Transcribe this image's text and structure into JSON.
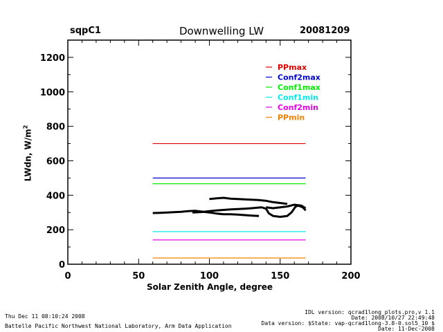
{
  "header": {
    "site": "sqpC1",
    "date": "20081209"
  },
  "footer": {
    "generated": "Thu Dec 11 08:10:24 2008",
    "institution": "Battelle Pacific Northwest National Laboratory, Arm Data Application",
    "idl_version": "IDL version: qcrad1long_plots.pro,v 1.1",
    "idl_date": "Date: 2008/10/27 22:49:48",
    "data_version": "Data version: $State: vap-qcrad1long-3.8-0.sol5_10 $",
    "data_date": "Date: 11-Dec-2008"
  },
  "chart_data": {
    "type": "line",
    "title": "Downwelling LW",
    "xlabel": "Solar Zenith Angle, degree",
    "ylabel": "LWdn, W/m",
    "ylabel_sup": "2",
    "xlim": [
      0,
      200
    ],
    "ylim": [
      0,
      1300
    ],
    "xticks": [
      0,
      50,
      100,
      150,
      200
    ],
    "yticks": [
      0,
      200,
      400,
      600,
      800,
      1000,
      1200
    ],
    "grid": false,
    "legend_position": "top-right",
    "limits": [
      {
        "name": "PPmax",
        "color": "#e00000",
        "y": 700,
        "x": [
          60,
          168
        ]
      },
      {
        "name": "Conf2max",
        "color": "#0000cc",
        "y": 500,
        "x": [
          60,
          168
        ]
      },
      {
        "name": "Conf1max",
        "color": "#00ee00",
        "y": 467,
        "x": [
          60,
          168
        ]
      },
      {
        "name": "Conf1min",
        "color": "#00e8e8",
        "y": 189,
        "x": [
          60,
          168
        ]
      },
      {
        "name": "Conf2min",
        "color": "#e000e0",
        "y": 141,
        "x": [
          60,
          168
        ]
      },
      {
        "name": "PPmin",
        "color": "#f08000",
        "y": 36,
        "x": [
          60,
          168
        ]
      }
    ],
    "series": [
      {
        "name": "LWdn",
        "color": "#000000",
        "points": [
          [
            60,
            297
          ],
          [
            65,
            298
          ],
          [
            70,
            300
          ],
          [
            75,
            302
          ],
          [
            80,
            304
          ],
          [
            85,
            308
          ],
          [
            90,
            310
          ],
          [
            95,
            305
          ],
          [
            100,
            300
          ],
          [
            105,
            294
          ],
          [
            110,
            290
          ],
          [
            115,
            290
          ],
          [
            120,
            288
          ],
          [
            125,
            285
          ],
          [
            130,
            282
          ],
          [
            135,
            280
          ]
        ]
      },
      {
        "name": "LWdn-upper",
        "color": "#000000",
        "points": [
          [
            100,
            378
          ],
          [
            105,
            382
          ],
          [
            110,
            385
          ],
          [
            115,
            380
          ],
          [
            120,
            378
          ],
          [
            125,
            376
          ],
          [
            130,
            374
          ],
          [
            135,
            372
          ],
          [
            140,
            368
          ],
          [
            145,
            360
          ],
          [
            150,
            355
          ],
          [
            155,
            350
          ]
        ]
      },
      {
        "name": "LWdn-lower",
        "color": "#000000",
        "points": [
          [
            88,
            300
          ],
          [
            95,
            303
          ],
          [
            100,
            308
          ],
          [
            105,
            312
          ],
          [
            110,
            315
          ],
          [
            115,
            318
          ],
          [
            120,
            320
          ],
          [
            125,
            322
          ],
          [
            130,
            325
          ],
          [
            134,
            328
          ],
          [
            137,
            330
          ],
          [
            140,
            322
          ],
          [
            142,
            295
          ],
          [
            145,
            280
          ],
          [
            150,
            275
          ],
          [
            155,
            280
          ],
          [
            158,
            300
          ],
          [
            161,
            335
          ],
          [
            163,
            340
          ],
          [
            166,
            330
          ],
          [
            168,
            312
          ]
        ]
      },
      {
        "name": "LWdn-tail",
        "color": "#000000",
        "points": [
          [
            140,
            330
          ],
          [
            145,
            325
          ],
          [
            150,
            330
          ],
          [
            155,
            335
          ],
          [
            160,
            345
          ],
          [
            165,
            340
          ],
          [
            168,
            325
          ]
        ]
      }
    ]
  }
}
